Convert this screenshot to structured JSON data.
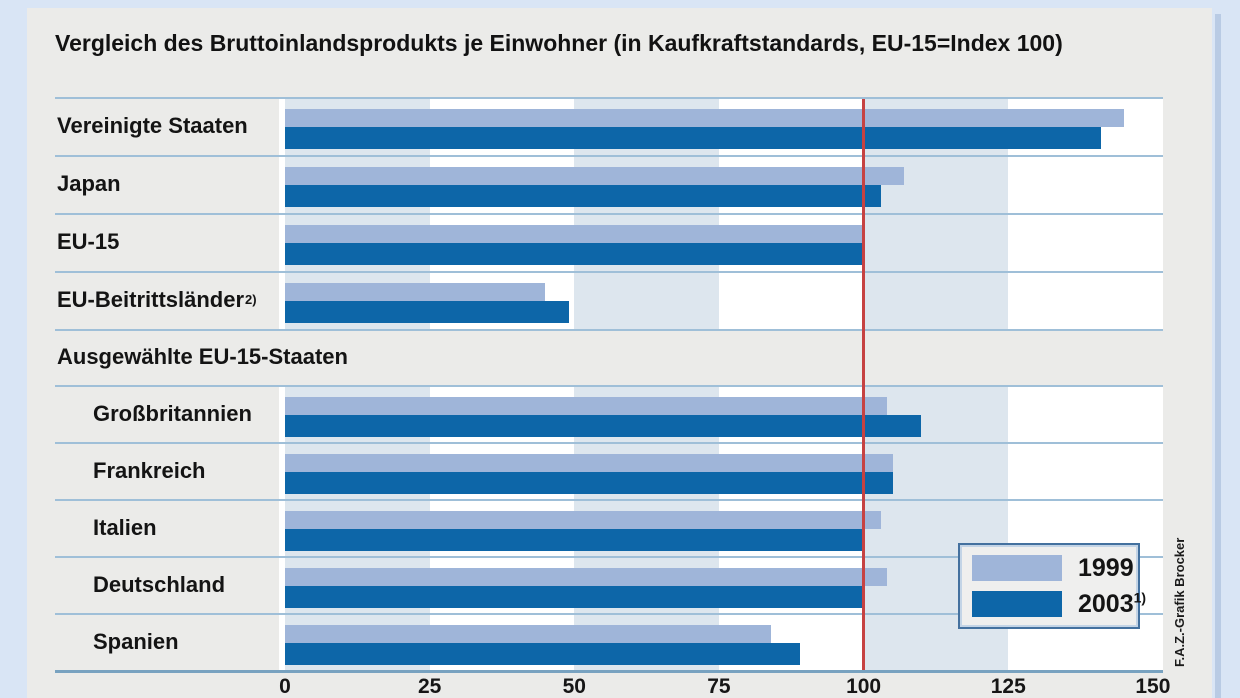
{
  "title": "Vergleich des Bruttoinlandsprodukts je Einwohner (in Kaufkraftstandards, EU-15=Index 100)",
  "credit": "F.A.Z.-Grafik Brocker",
  "colors": {
    "page_bg": "#d9e5f5",
    "panel_bg": "#ebebe9",
    "edge_strip": "#b9cbe4",
    "plot_bg": "#ffffff",
    "band": "#dde6ee",
    "bar_1999": "#9fb5d9",
    "bar_2003": "#0d66a8",
    "separator_line": "#9fbfd8",
    "axis_line": "#78a2c0",
    "reference_line": "#c64242",
    "text": "#141414"
  },
  "chart_data": {
    "type": "bar",
    "orientation": "horizontal",
    "title": "Vergleich des Bruttoinlandsprodukts je Einwohner (in Kaufkraftstandards, EU-15=Index 100)",
    "xlabel": "",
    "ylabel": "",
    "xlim": [
      0,
      150
    ],
    "xticks": [
      0,
      25,
      50,
      75,
      100,
      125,
      150
    ],
    "grid": "alternating vertical bands every 25 units",
    "reference_line": 100,
    "legend_position": "bottom-right",
    "legend": [
      {
        "label": "1999",
        "sup": ""
      },
      {
        "label": "2003",
        "sup": "1)"
      }
    ],
    "series_names": [
      "1999",
      "2003"
    ],
    "rows": [
      {
        "type": "item",
        "label": "Vereinigte Staaten",
        "sup": "",
        "indent": 0,
        "values": {
          "y1999": 145,
          "y2003": 141
        }
      },
      {
        "type": "item",
        "label": "Japan",
        "sup": "",
        "indent": 0,
        "values": {
          "y1999": 107,
          "y2003": 103
        }
      },
      {
        "type": "item",
        "label": "EU-15",
        "sup": "",
        "indent": 0,
        "values": {
          "y1999": 100,
          "y2003": 100
        }
      },
      {
        "type": "item",
        "label": "EU-Beitrittsländer",
        "sup": "2)",
        "indent": 0,
        "values": {
          "y1999": 45,
          "y2003": 49
        }
      },
      {
        "type": "section",
        "label": "Ausgewählte EU-15-Staaten"
      },
      {
        "type": "item",
        "label": "Großbritannien",
        "sup": "",
        "indent": 1,
        "values": {
          "y1999": 104,
          "y2003": 110
        }
      },
      {
        "type": "item",
        "label": "Frankreich",
        "sup": "",
        "indent": 1,
        "values": {
          "y1999": 105,
          "y2003": 105
        }
      },
      {
        "type": "item",
        "label": "Italien",
        "sup": "",
        "indent": 1,
        "values": {
          "y1999": 103,
          "y2003": 100
        }
      },
      {
        "type": "item",
        "label": "Deutschland",
        "sup": "",
        "indent": 1,
        "values": {
          "y1999": 104,
          "y2003": 100
        }
      },
      {
        "type": "item",
        "label": "Spanien",
        "sup": "",
        "indent": 1,
        "values": {
          "y1999": 84,
          "y2003": 89
        }
      }
    ]
  }
}
